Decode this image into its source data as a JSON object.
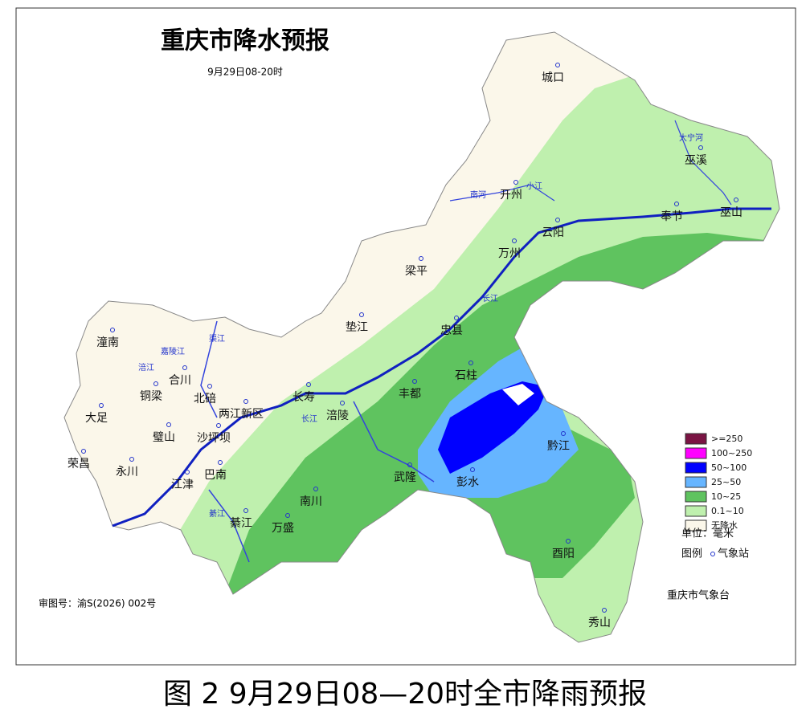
{
  "header": {
    "title": "重庆市降水预报",
    "subtitle": "9月29日08-20时"
  },
  "places": [
    "城口",
    "巫溪",
    "开州",
    "云阳",
    "奉节",
    "巫山",
    "万州",
    "梁平",
    "垫江",
    "忠县",
    "石柱",
    "丰都",
    "长寿",
    "涪陵",
    "武隆",
    "彭水",
    "黔江",
    "酉阳",
    "秀山",
    "南川",
    "万盛",
    "綦江",
    "江津",
    "巴南",
    "沙坪坝",
    "两江新区",
    "北碚",
    "合川",
    "铜梁",
    "潼南",
    "大足",
    "璧山",
    "永川",
    "荣昌"
  ],
  "rivers": [
    "大宁河",
    "南河",
    "小江",
    "长江",
    "长江",
    "涪江",
    "渠江",
    "嘉陵江",
    "綦江"
  ],
  "legend": {
    "items": [
      {
        "label": ">=250",
        "color": "#7a1443"
      },
      {
        "label": "100~250",
        "color": "#ff00ff"
      },
      {
        "label": "50~100",
        "color": "#0000ff"
      },
      {
        "label": "25~50",
        "color": "#66b5ff"
      },
      {
        "label": "10~25",
        "color": "#5fc35f"
      },
      {
        "label": "0.1~10",
        "color": "#bff0ae"
      },
      {
        "label": "无降水",
        "color": "#fbf7ea"
      }
    ],
    "unit": "单位：毫米",
    "key": "图例",
    "station": "气象站"
  },
  "agency": "重庆市气象台",
  "approval": "审图号：渝S(2026) 002号",
  "caption": "图 2  9月29日08—20时全市降雨预报"
}
